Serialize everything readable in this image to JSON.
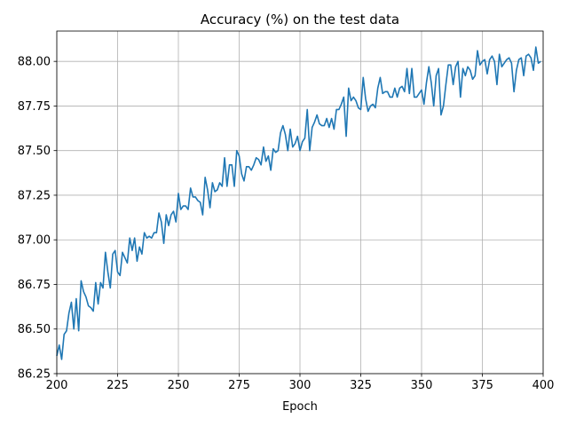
{
  "chart_data": {
    "type": "line",
    "title": "Accuracy (%) on the test data",
    "xlabel": "Epoch",
    "ylabel": "",
    "xlim": [
      200,
      400
    ],
    "ylim": [
      86.25,
      88.17
    ],
    "grid": true,
    "xticks": [
      200,
      225,
      250,
      275,
      300,
      325,
      350,
      375,
      400
    ],
    "yticks": [
      86.25,
      86.5,
      86.75,
      87.0,
      87.25,
      87.5,
      87.75,
      88.0
    ],
    "series": [
      {
        "color": "#1f77b4",
        "x_start": 200,
        "x_step": 1,
        "values": [
          86.35,
          86.41,
          86.33,
          86.47,
          86.49,
          86.59,
          86.65,
          86.5,
          86.67,
          86.49,
          86.77,
          86.71,
          86.68,
          86.63,
          86.62,
          86.6,
          86.76,
          86.64,
          86.76,
          86.73,
          86.93,
          86.82,
          86.73,
          86.92,
          86.94,
          86.82,
          86.8,
          86.93,
          86.9,
          86.87,
          87.01,
          86.94,
          87.01,
          86.88,
          86.96,
          86.92,
          87.04,
          87.01,
          87.02,
          87.01,
          87.04,
          87.04,
          87.15,
          87.1,
          86.98,
          87.14,
          87.08,
          87.14,
          87.16,
          87.1,
          87.26,
          87.17,
          87.19,
          87.19,
          87.17,
          87.29,
          87.24,
          87.24,
          87.22,
          87.21,
          87.14,
          87.35,
          87.28,
          87.18,
          87.32,
          87.27,
          87.28,
          87.32,
          87.3,
          87.46,
          87.3,
          87.42,
          87.42,
          87.3,
          87.5,
          87.47,
          87.37,
          87.33,
          87.41,
          87.41,
          87.39,
          87.42,
          87.46,
          87.45,
          87.42,
          87.52,
          87.44,
          87.47,
          87.39,
          87.51,
          87.49,
          87.5,
          87.6,
          87.64,
          87.59,
          87.5,
          87.62,
          87.52,
          87.54,
          87.58,
          87.5,
          87.55,
          87.57,
          87.73,
          87.5,
          87.63,
          87.66,
          87.7,
          87.65,
          87.64,
          87.64,
          87.68,
          87.63,
          87.68,
          87.62,
          87.73,
          87.73,
          87.76,
          87.8,
          87.58,
          87.85,
          87.78,
          87.8,
          87.78,
          87.74,
          87.73,
          87.91,
          87.79,
          87.72,
          87.75,
          87.76,
          87.74,
          87.85,
          87.91,
          87.82,
          87.83,
          87.83,
          87.8,
          87.8,
          87.85,
          87.8,
          87.85,
          87.86,
          87.83,
          87.96,
          87.82,
          87.96,
          87.8,
          87.8,
          87.82,
          87.84,
          87.76,
          87.88,
          87.97,
          87.88,
          87.75,
          87.92,
          87.96,
          87.7,
          87.75,
          87.87,
          87.98,
          87.98,
          87.87,
          87.97,
          88.0,
          87.8,
          87.96,
          87.92,
          87.97,
          87.95,
          87.9,
          87.92,
          88.06,
          87.98,
          88.0,
          88.01,
          87.93,
          88.01,
          88.03,
          88.0,
          87.87,
          88.04,
          87.97,
          87.99,
          88.01,
          88.02,
          87.99,
          87.83,
          87.95,
          88.01,
          88.02,
          87.92,
          88.03,
          88.04,
          88.02,
          87.95,
          88.08,
          87.99,
          88.0
        ]
      }
    ]
  }
}
